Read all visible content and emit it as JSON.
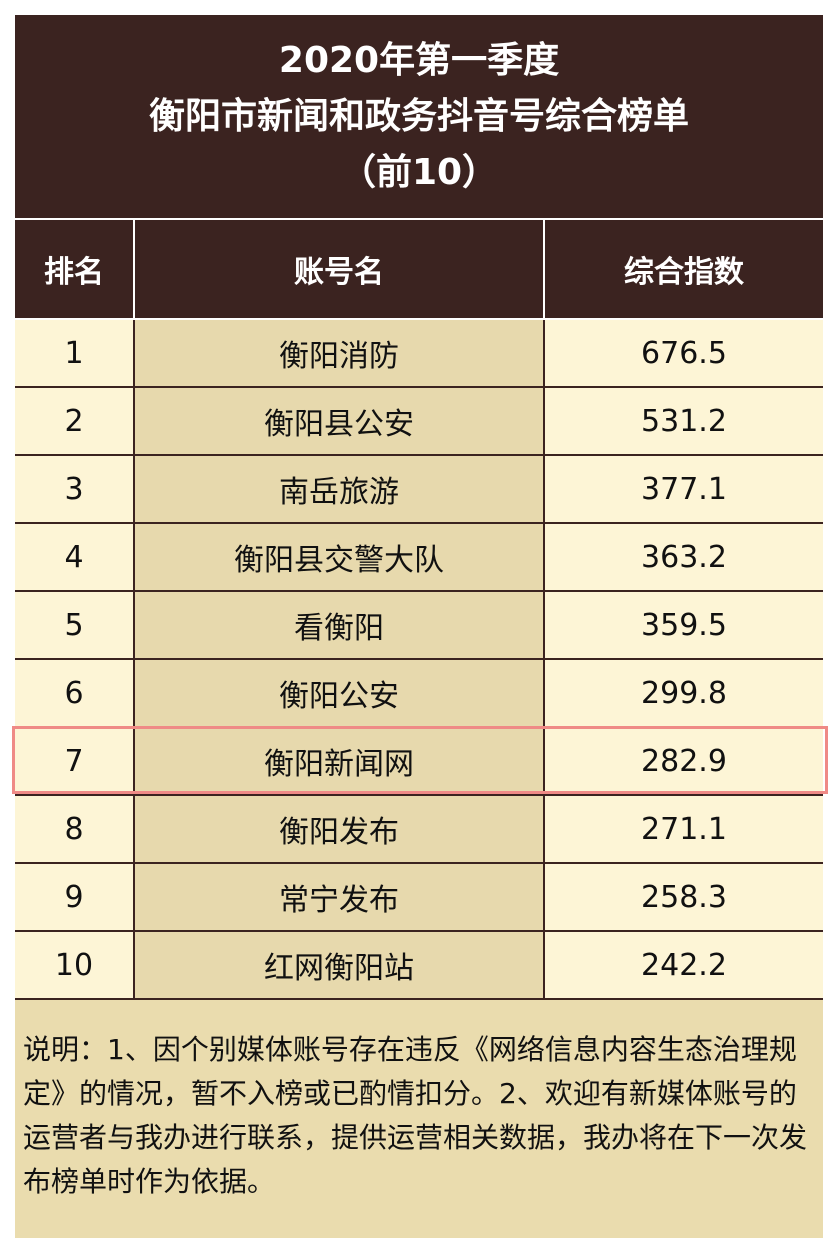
{
  "header": {
    "title_lines": [
      "2020年第一季度",
      "衡阳市新闻和政务抖音号综合榜单",
      "（前10）"
    ]
  },
  "table": {
    "columns": [
      "排名",
      "账号名",
      "综合指数"
    ],
    "rows": [
      [
        "1",
        "衡阳消防",
        "676.5"
      ],
      [
        "2",
        "衡阳县公安",
        "531.2"
      ],
      [
        "3",
        "南岳旅游",
        "377.1"
      ],
      [
        "4",
        "衡阳县交警大队",
        "363.2"
      ],
      [
        "5",
        "看衡阳",
        "359.5"
      ],
      [
        "6",
        "衡阳公安",
        "299.8"
      ],
      [
        "7",
        "衡阳新闻网",
        "282.9"
      ],
      [
        "8",
        "衡阳发布",
        "271.1"
      ],
      [
        "9",
        "常宁发布",
        "258.3"
      ],
      [
        "10",
        "红网衡阳站",
        "242.2"
      ]
    ],
    "highlighted_row": 6
  },
  "note": "说明：1、因个别媒体账号存在违反《网络信息内容生态治理规定》的情况，暂不入榜或已酌情扣分。2、欢迎有新媒体账号的运营者与我办进行联系，提供运营相关数据，我办将在下一次发布榜单时作为依据。"
}
